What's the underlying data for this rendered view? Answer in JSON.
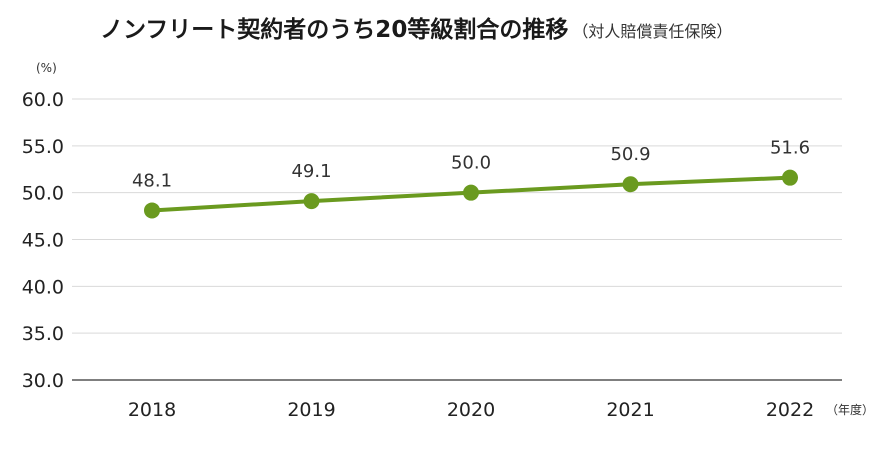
{
  "chart_data": {
    "type": "line",
    "title": "ノンフリート契約者のうち20等級割合の推移",
    "subtitle": "（対人賠償責任保険）",
    "y_unit": "(%)",
    "x_unit": "（年度）",
    "categories": [
      "2018",
      "2019",
      "2020",
      "2021",
      "2022"
    ],
    "series": [
      {
        "values": [
          48.1,
          49.1,
          50.0,
          50.9,
          51.6
        ]
      }
    ],
    "data_labels": [
      "48.1",
      "49.1",
      "50.0",
      "50.9",
      "51.6"
    ],
    "y_ticks": [
      "30.0",
      "35.0",
      "40.0",
      "45.0",
      "50.0",
      "55.0",
      "60.0"
    ],
    "ylim": [
      30,
      60
    ],
    "grid": true,
    "line_color": "#6a9a1f",
    "grid_color": "#d9d9d9",
    "axis_color": "#555555"
  }
}
